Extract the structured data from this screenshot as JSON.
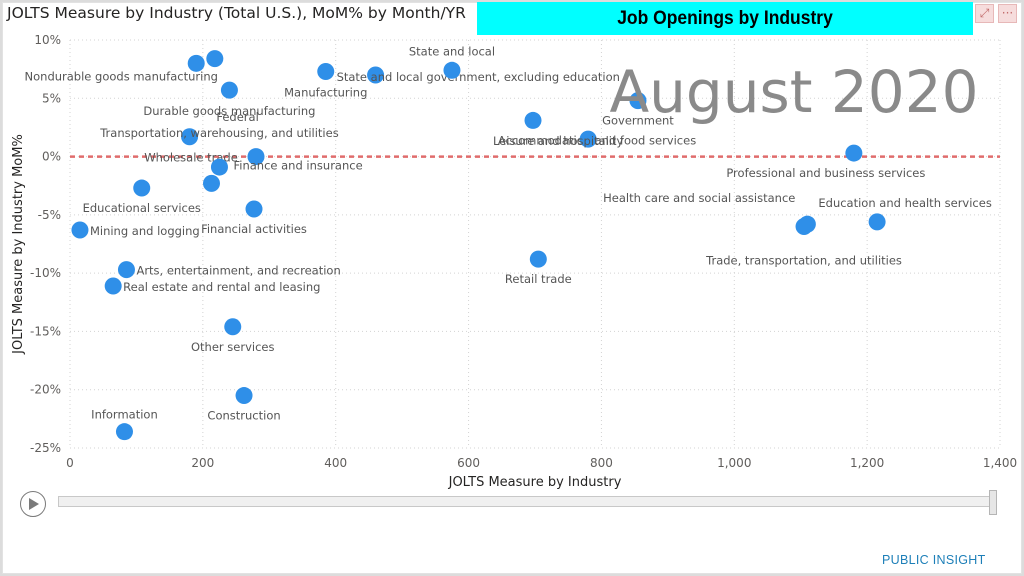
{
  "page": {
    "chart_title": "JOLTS Measure by Industry (Total U.S.), MoM% by Month/YR",
    "banner": "Job Openings by Industry",
    "period": "August 2020",
    "focus_icon": "focus-mode-icon",
    "more_icon": "more-options-icon",
    "more_label": "···",
    "play_icon": "play-icon",
    "logo": "PUBLIC INSIGHT"
  },
  "chart_data": {
    "type": "scatter",
    "title": "JOLTS Measure by Industry (Total U.S.), MoM% by Month/YR",
    "xlabel": "JOLTS Measure by Industry",
    "ylabel": "JOLTS Measure by Industry MoM%",
    "xlim": [
      0,
      1400
    ],
    "ylim": [
      -25,
      10
    ],
    "x_ticks": [
      "0",
      "200",
      "400",
      "600",
      "800",
      "1,000",
      "1,200",
      "1,400"
    ],
    "y_ticks": [
      "10%",
      "5%",
      "0%",
      "-5%",
      "-10%",
      "-15%",
      "-20%",
      "-25%"
    ],
    "grid": true,
    "reference_line": 0,
    "point_color": "#2f8fe8",
    "reference_color": "#e06c6c",
    "points": [
      {
        "label": "Nondurable goods manufacturing",
        "x": 190,
        "y": 8.0
      },
      {
        "label": "",
        "x": 218,
        "y": 8.4
      },
      {
        "label": "Durable goods manufacturing",
        "x": 240,
        "y": 5.7
      },
      {
        "label": "Manufacturing",
        "x": 385,
        "y": 7.3
      },
      {
        "label": "State and local government, excluding education",
        "x": 460,
        "y": 7.0
      },
      {
        "label": "State and local",
        "x": 575,
        "y": 7.4
      },
      {
        "label": "Government",
        "x": 855,
        "y": 4.8
      },
      {
        "label": "Federal",
        "x": 180,
        "y": 1.7
      },
      {
        "label": "Wholesale trade",
        "x": 280,
        "y": 0.0
      },
      {
        "label": "Accommodation and food services",
        "x": 697,
        "y": 3.1
      },
      {
        "label": "Leisure and hospitality",
        "x": 780,
        "y": 1.5
      },
      {
        "label": "Professional and business services",
        "x": 1180,
        "y": 0.3
      },
      {
        "label": "Transportation, warehousing, and utilities",
        "x": 225,
        "y": -0.9
      },
      {
        "label": "Finance and insurance",
        "x": 213,
        "y": -2.3
      },
      {
        "label": "Educational services",
        "x": 108,
        "y": -2.7
      },
      {
        "label": "Financial activities",
        "x": 277,
        "y": -4.5
      },
      {
        "label": "Mining and logging",
        "x": 15,
        "y": -6.3
      },
      {
        "label": "Health care and social assistance",
        "x": 1110,
        "y": -5.8
      },
      {
        "label": "Trade, transportation, and utilities",
        "x": 1105,
        "y": -6.0
      },
      {
        "label": "Education and health services",
        "x": 1215,
        "y": -5.6
      },
      {
        "label": "Retail trade",
        "x": 705,
        "y": -8.8
      },
      {
        "label": "Arts, entertainment, and recreation",
        "x": 85,
        "y": -9.7
      },
      {
        "label": "Real estate and rental and leasing",
        "x": 65,
        "y": -11.1
      },
      {
        "label": "Other services",
        "x": 245,
        "y": -14.6
      },
      {
        "label": "Construction",
        "x": 262,
        "y": -20.5
      },
      {
        "label": "Information",
        "x": 82,
        "y": -23.6
      }
    ]
  }
}
